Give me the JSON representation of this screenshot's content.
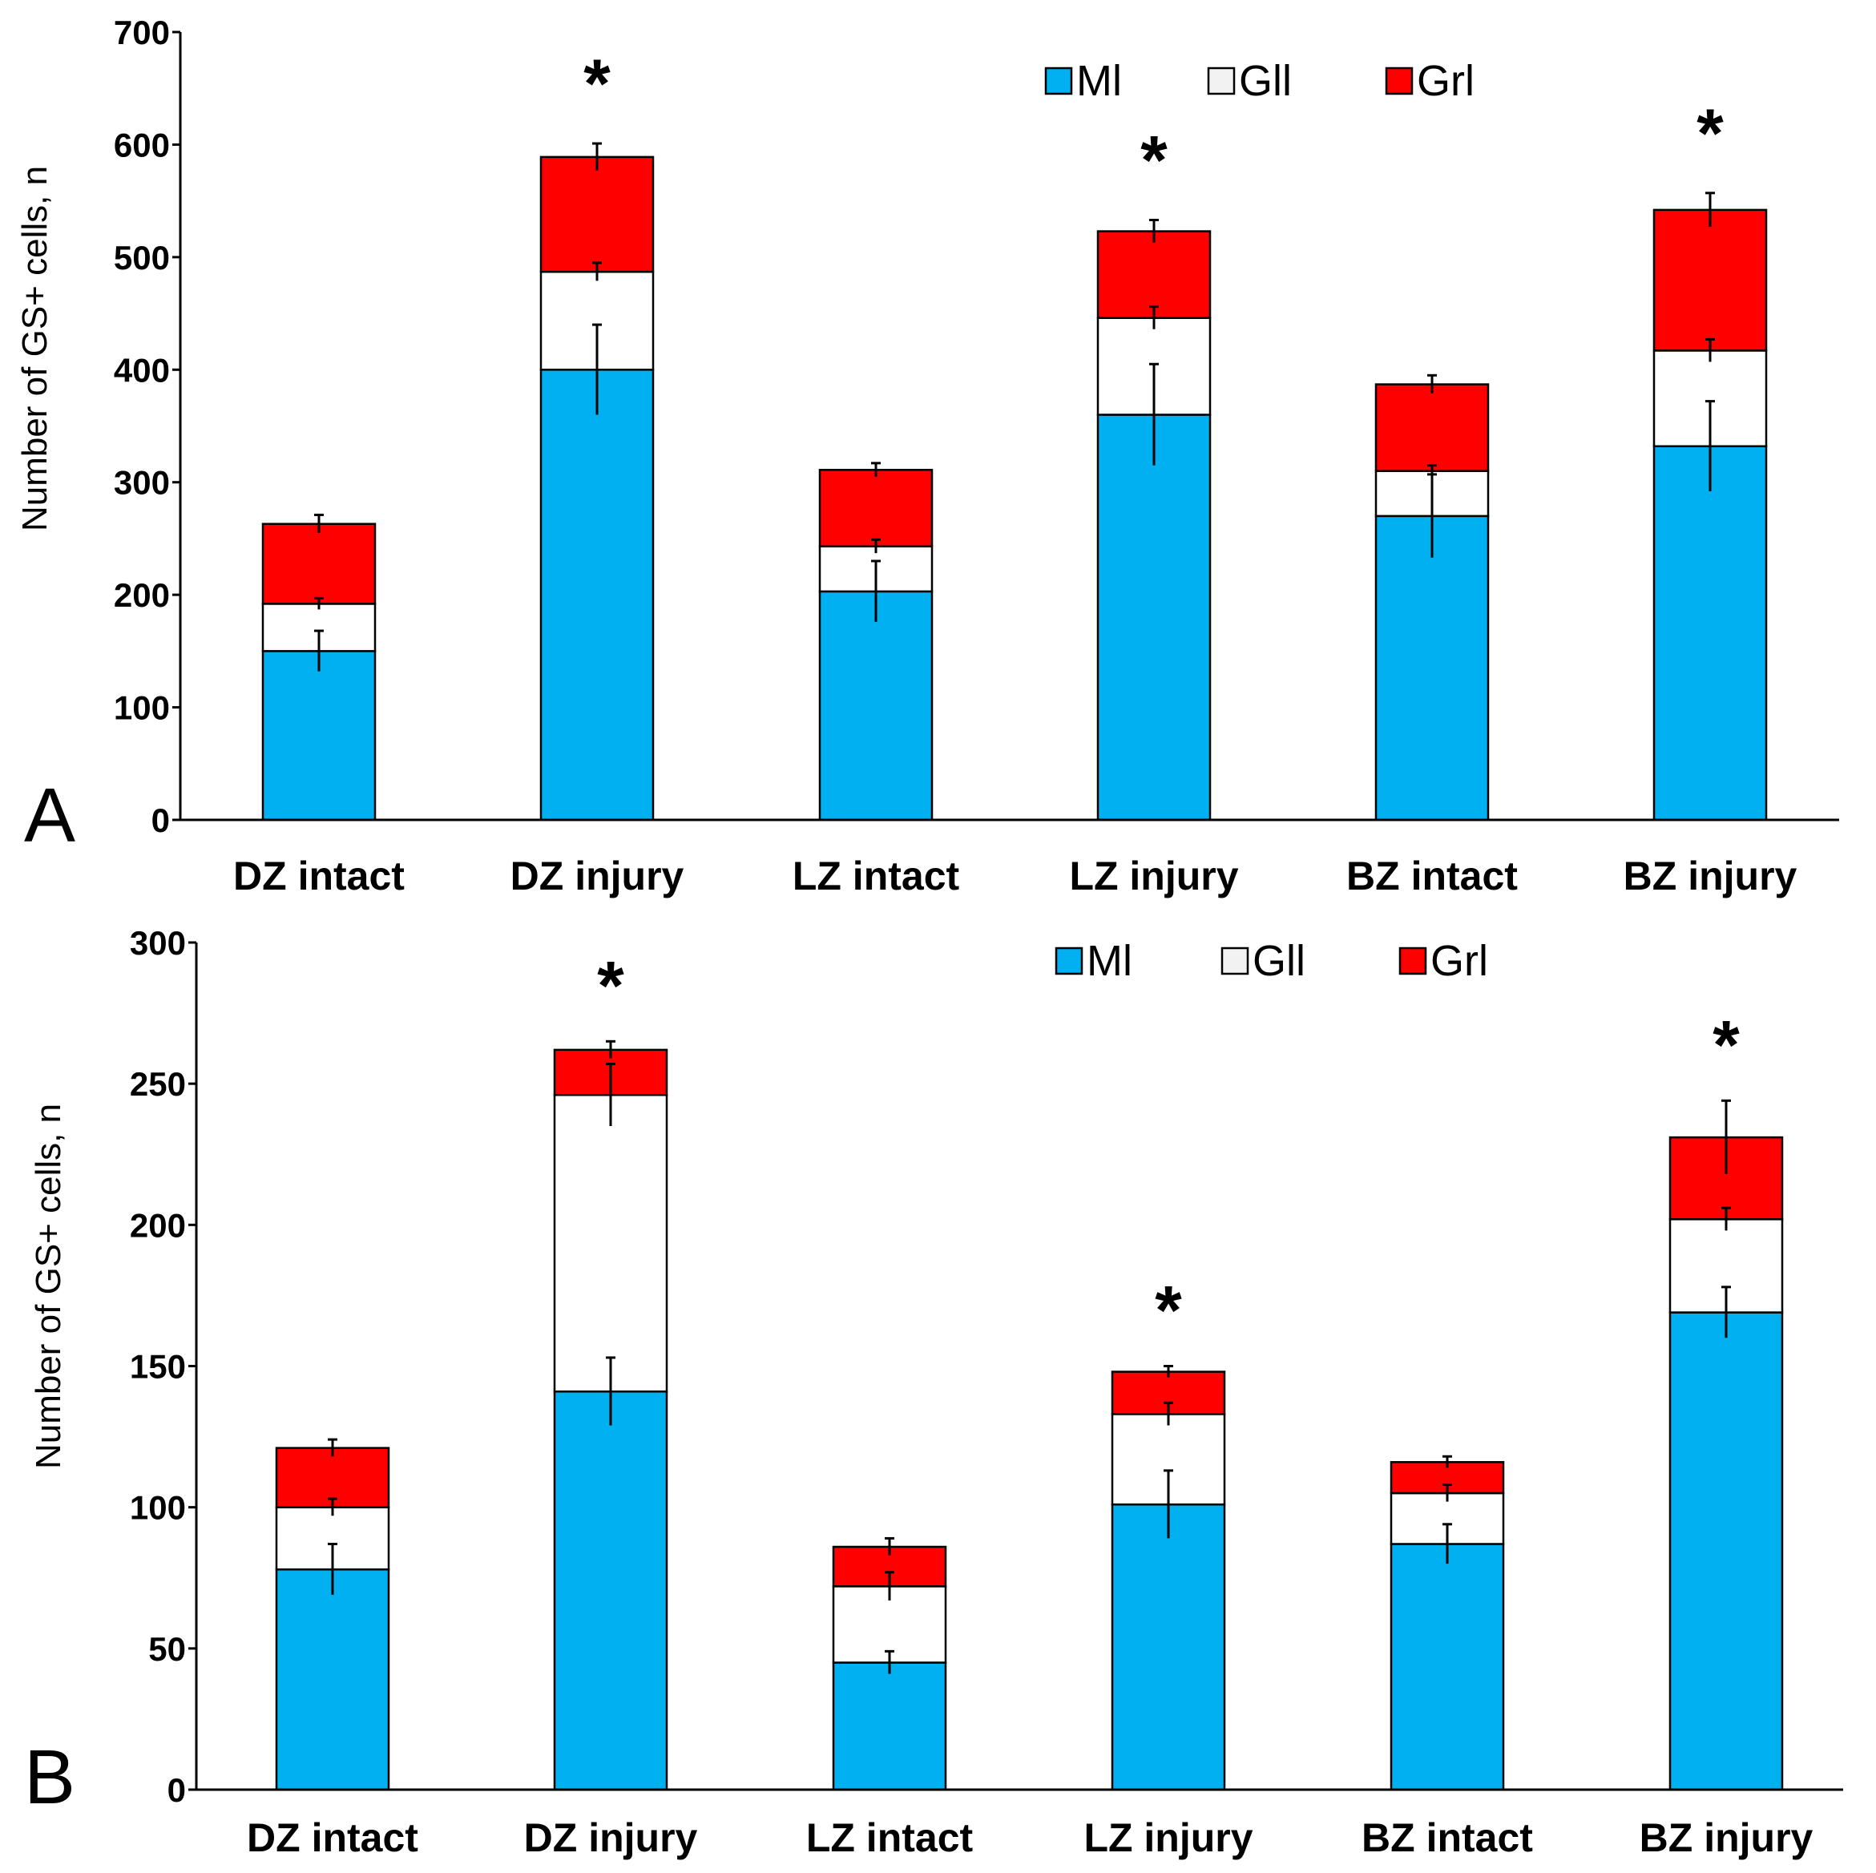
{
  "chart_data": [
    {
      "panel": "A",
      "type": "bar",
      "stacked": true,
      "ylabel": "Number of GS+ cells, n",
      "ylim": [
        0,
        700
      ],
      "yticks": [
        0,
        100,
        200,
        300,
        400,
        500,
        600,
        700
      ],
      "categories": [
        "DZ intact",
        "DZ injury",
        "LZ intact",
        "LZ injury",
        "BZ intact",
        "BZ injury"
      ],
      "legend_position": "top-right",
      "series": [
        {
          "name": "Ml",
          "color": "#00b0f0",
          "values": [
            150,
            400,
            203,
            360,
            270,
            332
          ],
          "errors": [
            18,
            40,
            27,
            45,
            37,
            40
          ]
        },
        {
          "name": "Gll",
          "color": "#ffffff",
          "values": [
            42,
            87,
            40,
            86,
            40,
            85
          ],
          "errors": [
            5,
            8,
            6,
            10,
            5,
            10
          ]
        },
        {
          "name": "Grl",
          "color": "#ff0000",
          "values": [
            71,
            102,
            68,
            77,
            77,
            125
          ],
          "errors": [
            8,
            12,
            6,
            10,
            8,
            15
          ]
        }
      ],
      "significance": [
        "",
        "*",
        "",
        "*",
        "",
        "*"
      ]
    },
    {
      "panel": "B",
      "type": "bar",
      "stacked": true,
      "ylabel": "Number of GS+ cells, n",
      "ylim": [
        0,
        300
      ],
      "yticks": [
        0,
        50,
        100,
        150,
        200,
        250,
        300
      ],
      "categories": [
        "DZ intact",
        "DZ injury",
        "LZ intact",
        "LZ injury",
        "BZ intact",
        "BZ injury"
      ],
      "legend_position": "top-right",
      "series": [
        {
          "name": "Ml",
          "color": "#00b0f0",
          "values": [
            78,
            141,
            45,
            101,
            87,
            169
          ],
          "errors": [
            9,
            12,
            4,
            12,
            7,
            9
          ]
        },
        {
          "name": "Gll",
          "color": "#ffffff",
          "values": [
            22,
            105,
            27,
            32,
            18,
            33
          ],
          "errors": [
            3,
            11,
            5,
            4,
            3,
            4
          ]
        },
        {
          "name": "Grl",
          "color": "#ff0000",
          "values": [
            21,
            16,
            14,
            15,
            11,
            29
          ],
          "errors": [
            3,
            3,
            3,
            2,
            2,
            13
          ]
        }
      ],
      "significance": [
        "",
        "*",
        "",
        "*",
        "",
        "*"
      ]
    }
  ]
}
